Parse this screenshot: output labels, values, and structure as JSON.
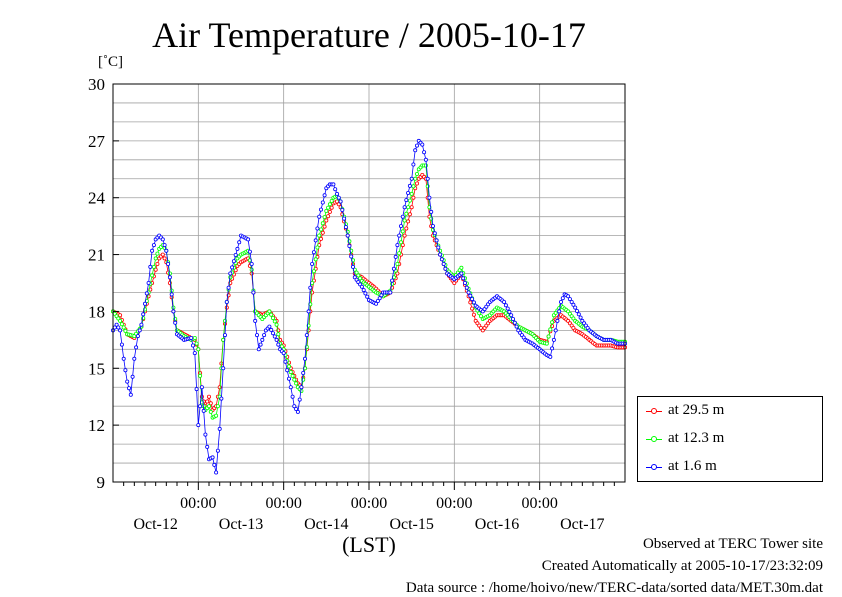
{
  "header": {
    "title": "Air Temperature / 2005-10-17",
    "unit": "[˚C]",
    "xlabel": "(LST)"
  },
  "footer": {
    "site": "Observed at TERC Tower site",
    "created": "Created Automatically at 2005-10-17/23:32:09",
    "source": "Data source : /home/hoivo/new/TERC-data/sorted  data/MET.30m.dat"
  },
  "chart_data": {
    "type": "line",
    "title": "Air Temperature / 2005-10-17",
    "ylabel": "[˚C]",
    "xlabel": "(LST)",
    "ylim": [
      9,
      30
    ],
    "yticks": [
      9,
      12,
      15,
      18,
      21,
      24,
      27,
      30
    ],
    "xlim": [
      0,
      144
    ],
    "x_unit": "hours since 2005-10-11 00:00 LST",
    "midnight_ticks": [
      24,
      48,
      72,
      96,
      120
    ],
    "midnight_label": "00:00",
    "day_labels": [
      {
        "x": 12,
        "label": "Oct-12"
      },
      {
        "x": 36,
        "label": "Oct-13"
      },
      {
        "x": 60,
        "label": "Oct-14"
      },
      {
        "x": 84,
        "label": "Oct-15"
      },
      {
        "x": 108,
        "label": "Oct-16"
      },
      {
        "x": 132,
        "label": "Oct-17"
      }
    ],
    "grid": true,
    "legend_position": "bottom-right-outside",
    "series": [
      {
        "name": "at 29.5 m",
        "color": "#ff0000",
        "knots": [
          [
            0,
            18
          ],
          [
            2,
            17.8
          ],
          [
            4,
            16.8
          ],
          [
            6,
            16.6
          ],
          [
            8,
            17.2
          ],
          [
            10,
            18.8
          ],
          [
            12,
            20.2
          ],
          [
            13,
            20.8
          ],
          [
            14,
            21
          ],
          [
            15,
            20.6
          ],
          [
            16,
            19.5
          ],
          [
            17,
            18
          ],
          [
            18,
            17
          ],
          [
            20,
            16.8
          ],
          [
            22,
            16.6
          ],
          [
            23,
            16.5
          ],
          [
            24,
            16
          ],
          [
            25,
            13.5
          ],
          [
            26,
            13
          ],
          [
            27,
            13.5
          ],
          [
            28,
            12.8
          ],
          [
            29,
            13
          ],
          [
            30,
            14
          ],
          [
            31,
            16.5
          ],
          [
            32,
            18.2
          ],
          [
            33,
            19.5
          ],
          [
            35,
            20.4
          ],
          [
            36,
            20.6
          ],
          [
            38,
            20.8
          ],
          [
            39,
            20
          ],
          [
            40,
            18
          ],
          [
            42,
            17.8
          ],
          [
            44,
            18
          ],
          [
            46,
            17.5
          ],
          [
            47,
            16.5
          ],
          [
            48,
            16.2
          ],
          [
            50,
            15
          ],
          [
            52,
            14.2
          ],
          [
            53,
            14
          ],
          [
            54,
            15
          ],
          [
            56,
            19
          ],
          [
            58,
            21.5
          ],
          [
            60,
            22.8
          ],
          [
            62,
            23.7
          ],
          [
            63,
            23.8
          ],
          [
            64,
            23.5
          ],
          [
            66,
            22
          ],
          [
            68,
            20
          ],
          [
            70,
            19.8
          ],
          [
            72,
            19.5
          ],
          [
            74,
            19.2
          ],
          [
            76,
            18.8
          ],
          [
            78,
            19
          ],
          [
            80,
            20
          ],
          [
            82,
            22
          ],
          [
            84,
            23.5
          ],
          [
            85,
            24.5
          ],
          [
            86,
            25
          ],
          [
            87,
            25.2
          ],
          [
            88,
            25
          ],
          [
            89,
            23
          ],
          [
            90,
            22
          ],
          [
            92,
            21
          ],
          [
            94,
            20
          ],
          [
            96,
            19.5
          ],
          [
            98,
            20
          ],
          [
            100,
            18.8
          ],
          [
            102,
            17.5
          ],
          [
            104,
            17
          ],
          [
            106,
            17.5
          ],
          [
            108,
            17.8
          ],
          [
            110,
            17.8
          ],
          [
            112,
            17.5
          ],
          [
            114,
            17.2
          ],
          [
            116,
            17
          ],
          [
            118,
            16.8
          ],
          [
            120,
            16.5
          ],
          [
            122,
            16.4
          ],
          [
            124,
            17.5
          ],
          [
            126,
            17.8
          ],
          [
            128,
            17.5
          ],
          [
            130,
            17
          ],
          [
            132,
            16.8
          ],
          [
            134,
            16.5
          ],
          [
            136,
            16.2
          ],
          [
            138,
            16.2
          ],
          [
            139,
            16.2
          ],
          [
            140,
            16.2
          ],
          [
            142,
            16.1
          ],
          [
            144,
            16.1
          ]
        ]
      },
      {
        "name": "at 12.3 m",
        "color": "#00ff00",
        "knots": [
          [
            0,
            18
          ],
          [
            2,
            17.5
          ],
          [
            4,
            16.8
          ],
          [
            6,
            16.7
          ],
          [
            8,
            17.2
          ],
          [
            10,
            19
          ],
          [
            12,
            20.8
          ],
          [
            13,
            21.3
          ],
          [
            14,
            21.5
          ],
          [
            15,
            21.2
          ],
          [
            16,
            20
          ],
          [
            17,
            18.2
          ],
          [
            18,
            17
          ],
          [
            20,
            16.7
          ],
          [
            22,
            16.5
          ],
          [
            23,
            16.6
          ],
          [
            24,
            16
          ],
          [
            25,
            13.2
          ],
          [
            26,
            12.8
          ],
          [
            27,
            13
          ],
          [
            28,
            12.4
          ],
          [
            29,
            12.5
          ],
          [
            30,
            13.5
          ],
          [
            31,
            16.5
          ],
          [
            32,
            18.5
          ],
          [
            33,
            19.8
          ],
          [
            35,
            20.8
          ],
          [
            36,
            21
          ],
          [
            38,
            21.2
          ],
          [
            39,
            20.2
          ],
          [
            40,
            18
          ],
          [
            42,
            17.6
          ],
          [
            44,
            18
          ],
          [
            46,
            17.3
          ],
          [
            47,
            16.3
          ],
          [
            48,
            16
          ],
          [
            50,
            14.8
          ],
          [
            52,
            14
          ],
          [
            53,
            13.8
          ],
          [
            54,
            15
          ],
          [
            56,
            19.5
          ],
          [
            58,
            22
          ],
          [
            60,
            23.3
          ],
          [
            62,
            24
          ],
          [
            63,
            24.1
          ],
          [
            64,
            23.8
          ],
          [
            66,
            22.2
          ],
          [
            68,
            20.2
          ],
          [
            70,
            19.6
          ],
          [
            72,
            19.3
          ],
          [
            74,
            19
          ],
          [
            76,
            18.8
          ],
          [
            78,
            19.1
          ],
          [
            80,
            20.5
          ],
          [
            82,
            22.8
          ],
          [
            84,
            24.2
          ],
          [
            85,
            25
          ],
          [
            86,
            25.5
          ],
          [
            87,
            25.7
          ],
          [
            88,
            25.7
          ],
          [
            89,
            23.5
          ],
          [
            90,
            22.3
          ],
          [
            92,
            21.2
          ],
          [
            94,
            20.2
          ],
          [
            96,
            19.8
          ],
          [
            98,
            20.3
          ],
          [
            100,
            19.2
          ],
          [
            102,
            18.2
          ],
          [
            104,
            17.6
          ],
          [
            106,
            17.8
          ],
          [
            108,
            18.2
          ],
          [
            110,
            18
          ],
          [
            112,
            17.6
          ],
          [
            114,
            17.2
          ],
          [
            116,
            17
          ],
          [
            118,
            16.8
          ],
          [
            120,
            16.4
          ],
          [
            122,
            16.3
          ],
          [
            124,
            17.8
          ],
          [
            126,
            18.3
          ],
          [
            128,
            18
          ],
          [
            130,
            17.5
          ],
          [
            132,
            17.2
          ],
          [
            134,
            17
          ],
          [
            136,
            16.7
          ],
          [
            138,
            16.5
          ],
          [
            139,
            16.5
          ],
          [
            140,
            16.5
          ],
          [
            142,
            16.4
          ],
          [
            144,
            16.4
          ]
        ]
      },
      {
        "name": "at 1.6 m",
        "color": "#0000ff",
        "knots": [
          [
            0,
            17
          ],
          [
            1,
            17.3
          ],
          [
            2,
            17
          ],
          [
            3,
            15.5
          ],
          [
            4,
            14.3
          ],
          [
            5,
            13.6
          ],
          [
            6,
            15.5
          ],
          [
            7,
            16.7
          ],
          [
            8,
            17.3
          ],
          [
            10,
            19.5
          ],
          [
            11,
            21.2
          ],
          [
            12,
            21.8
          ],
          [
            13,
            22
          ],
          [
            14,
            21.8
          ],
          [
            15,
            21.2
          ],
          [
            16,
            19.8
          ],
          [
            17,
            18
          ],
          [
            18,
            16.8
          ],
          [
            20,
            16.5
          ],
          [
            22,
            16.6
          ],
          [
            23,
            15.8
          ],
          [
            24,
            12
          ],
          [
            25,
            14
          ],
          [
            26,
            11.5
          ],
          [
            27,
            10.2
          ],
          [
            28,
            10.3
          ],
          [
            29,
            9.5
          ],
          [
            30,
            11.8
          ],
          [
            31,
            15
          ],
          [
            32,
            18.5
          ],
          [
            33,
            20
          ],
          [
            35,
            21.3
          ],
          [
            36,
            22
          ],
          [
            38,
            21.8
          ],
          [
            39,
            20.5
          ],
          [
            40,
            17.5
          ],
          [
            41,
            16
          ],
          [
            42,
            16.5
          ],
          [
            43,
            17
          ],
          [
            44,
            17.2
          ],
          [
            46,
            16.5
          ],
          [
            47,
            16
          ],
          [
            48,
            15.8
          ],
          [
            50,
            14
          ],
          [
            51,
            13
          ],
          [
            52,
            12.7
          ],
          [
            53,
            14
          ],
          [
            54,
            15.5
          ],
          [
            56,
            20.5
          ],
          [
            58,
            23
          ],
          [
            60,
            24.5
          ],
          [
            61,
            24.7
          ],
          [
            62,
            24.7
          ],
          [
            63,
            24.2
          ],
          [
            64,
            23.8
          ],
          [
            66,
            22
          ],
          [
            68,
            19.8
          ],
          [
            70,
            19.3
          ],
          [
            72,
            18.6
          ],
          [
            74,
            18.4
          ],
          [
            76,
            19
          ],
          [
            78,
            19
          ],
          [
            80,
            21.5
          ],
          [
            82,
            23.5
          ],
          [
            84,
            25
          ],
          [
            85,
            26.5
          ],
          [
            86,
            27
          ],
          [
            87,
            26.8
          ],
          [
            88,
            26
          ],
          [
            89,
            24
          ],
          [
            90,
            22.5
          ],
          [
            92,
            21
          ],
          [
            94,
            20
          ],
          [
            96,
            19.7
          ],
          [
            98,
            20
          ],
          [
            100,
            19
          ],
          [
            102,
            18.3
          ],
          [
            104,
            18
          ],
          [
            106,
            18.5
          ],
          [
            108,
            18.8
          ],
          [
            110,
            18.5
          ],
          [
            112,
            17.8
          ],
          [
            114,
            17
          ],
          [
            116,
            16.5
          ],
          [
            118,
            16.3
          ],
          [
            120,
            16
          ],
          [
            122,
            15.7
          ],
          [
            123,
            15.6
          ],
          [
            124,
            16.5
          ],
          [
            126,
            18.5
          ],
          [
            127,
            18.9
          ],
          [
            128,
            18.8
          ],
          [
            130,
            18.2
          ],
          [
            132,
            17.5
          ],
          [
            134,
            17
          ],
          [
            136,
            16.7
          ],
          [
            138,
            16.5
          ],
          [
            140,
            16.5
          ],
          [
            142,
            16.3
          ],
          [
            144,
            16.3
          ]
        ]
      }
    ]
  }
}
